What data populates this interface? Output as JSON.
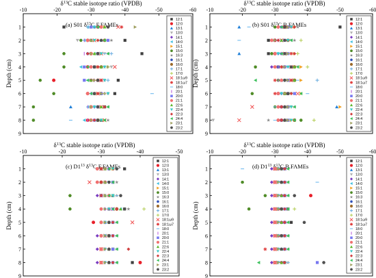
{
  "legend_entries": [
    "12:1",
    "12:0",
    "13:1",
    "13:0",
    "14:1",
    "14:0",
    "15:1",
    "15:0",
    "16:3",
    "16:1",
    "16:0",
    "17:1",
    "17:0",
    "18:1ω9",
    "18:1ω7",
    "18:0",
    "20:1",
    "20:0",
    "21:1",
    "22:6",
    "22:4",
    "22:3",
    "24:4",
    "23:1",
    "23:2"
  ],
  "colors": [
    "#404040",
    "#e8202a",
    "#1f7fd8",
    "#b0b0b0",
    "#7a3cc0",
    "#44c0e0",
    "#f0a020",
    "#508c28",
    "#8c8c8c",
    "#3050b8",
    "#9c6a2c",
    "#70b0e0",
    "#b8d060",
    "#f05050",
    "#e04040",
    "#7cc0f0",
    "#c070e0",
    "#7878f0",
    "#f07070",
    "#60b830",
    "#38c8c8",
    "#d04040",
    "#3cc05c",
    "#a0a060",
    "#505050"
  ],
  "marker_shapes": [
    "square-icon",
    "circle-icon",
    "triangle-up-icon",
    "triangle-down-icon",
    "diamond-icon",
    "triangle-left-icon",
    "triangle-right-icon",
    "hexagon-icon",
    "star-icon",
    "pentagon-icon",
    "circle-icon",
    "plus-icon",
    "plus-icon",
    "x-icon",
    "asterisk-icon",
    "dash-icon",
    "bar-icon",
    "square-icon",
    "circle-icon",
    "triangle-up-icon",
    "triangle-down-icon",
    "diamond-icon",
    "triangle-left-icon",
    "triangle-right-icon",
    "hexagon-icon"
  ],
  "chart_data": [
    {
      "type": "scatter",
      "title": "(a) S01 δ13C F.FAMEs",
      "axis_title": "δ13C stable isotope ratio (VPDB)",
      "ylabel": "Depth (cm)",
      "xlim": [
        -10,
        -60
      ],
      "ylim": [
        9,
        0
      ],
      "xticks": [
        -10,
        -20,
        -30,
        -40,
        -50,
        -60
      ],
      "yticks": [
        1,
        2,
        3,
        4,
        5,
        6,
        7,
        8,
        9
      ],
      "series": [
        {
          "depth": 1,
          "values": [
            -22,
            -32,
            -30,
            -31,
            -33,
            -29,
            -34,
            -30,
            -35,
            -31,
            -32,
            -29,
            -33,
            -38,
            -39,
            -31,
            -32,
            -30,
            -33,
            -34,
            -31,
            -35,
            -32,
            -43,
            -35
          ]
        },
        {
          "depth": 2,
          "values": [
            -40,
            -29,
            -33,
            -26,
            -30,
            -28,
            -31,
            -27,
            -36,
            -30,
            -34,
            -29,
            -32,
            -31,
            -30,
            -33,
            -28,
            -35,
            -29,
            -30,
            -31,
            -32,
            -34,
            -30,
            -33
          ]
        },
        {
          "depth": 3,
          "values": [
            -45,
            -30,
            -32,
            -34,
            -29,
            -31,
            -33,
            -22,
            -35,
            -29,
            -32,
            -36,
            -31,
            -33,
            -30,
            -34,
            -28,
            -32,
            -30,
            -31,
            -33,
            -29,
            -35,
            -30,
            -32
          ]
        },
        {
          "depth": 4,
          "values": [
            -31,
            -29,
            -33,
            -36,
            -30,
            -27,
            -32,
            -22,
            -34,
            -31,
            -33,
            -30,
            -35,
            -37,
            -32,
            -29,
            -31,
            -28,
            -30,
            -33,
            -34,
            -32,
            -29,
            -35,
            -31
          ]
        },
        {
          "depth": 5,
          "values": [
            -38,
            -19,
            -32,
            -30,
            -33,
            -29,
            -31,
            -15,
            -34,
            -30,
            -32,
            -35,
            -31,
            -33,
            -30,
            -29,
            -31,
            -28,
            -32,
            -30,
            -34,
            -33,
            -29,
            -31,
            -32
          ]
        },
        {
          "depth": 6,
          "values": [
            -37,
            -29,
            -33,
            -31,
            -34,
            -30,
            -32,
            -19,
            -35,
            -31,
            -33,
            -30,
            -34,
            -32,
            -31,
            -48,
            -30,
            -33,
            -29,
            -31,
            -35,
            -32,
            -30,
            -33,
            -31
          ]
        },
        {
          "depth": 7,
          "values": [
            -34,
            -30,
            -24,
            -32,
            -31,
            -29,
            -33,
            -13,
            -35,
            -30,
            -32,
            -31,
            -34,
            -33,
            -30,
            -31,
            -29,
            -32,
            -30,
            -33,
            -31,
            -34,
            -35,
            -30,
            -32
          ]
        },
        {
          "depth": 8,
          "values": [
            -33,
            -29,
            -31,
            -32,
            -30,
            -28,
            -34,
            -13,
            -35,
            -30,
            -32,
            -31,
            -33,
            -34,
            -30,
            -24,
            -29,
            -31,
            -30,
            -32,
            -33,
            -31,
            -34,
            -30,
            -32
          ]
        }
      ]
    },
    {
      "type": "scatter",
      "title": "(b) S01 δ13C B.FAMEs",
      "axis_title": "δ13C stable isotope ratio (VPDB)",
      "ylabel": "Depth (cm)",
      "xlim": [
        -10,
        -60
      ],
      "ylim": [
        9,
        0
      ],
      "xticks": [
        -10,
        -20,
        -30,
        -40,
        -50,
        -60
      ],
      "yticks": [
        1,
        2,
        3,
        4,
        5,
        6,
        7,
        8,
        9
      ],
      "series": [
        {
          "depth": 1,
          "values": [
            -50,
            -33,
            -19,
            -35,
            -31,
            -34,
            -36,
            -30,
            -37,
            -32,
            -34,
            -31,
            -36,
            -33,
            -35,
            -22,
            -32,
            -34,
            -31,
            -33,
            -35,
            -36,
            -32,
            -34,
            -33
          ]
        },
        {
          "depth": 2,
          "values": [
            -28,
            -30,
            -32,
            -35,
            -31,
            -29,
            -33,
            -34,
            -36,
            -30,
            -34,
            -31,
            -38,
            -32,
            -30,
            -19,
            -31,
            -33,
            -29,
            -32,
            -34,
            -31,
            -35,
            -30,
            -33
          ]
        },
        {
          "depth": 3,
          "values": [
            -28,
            -30,
            -19,
            -35,
            -31,
            -33,
            -36,
            -29,
            -34,
            -32,
            -30,
            -31,
            -37,
            -33,
            -35,
            -31,
            -32,
            -34,
            -30,
            -33,
            -31,
            -36,
            -32,
            -34,
            -33
          ]
        },
        {
          "depth": 4,
          "values": [
            -31,
            -33,
            -35,
            -37,
            -29,
            -32,
            -38,
            -24,
            -34,
            -31,
            -36,
            -33,
            -40,
            -35,
            -32,
            -34,
            -31,
            -33,
            -30,
            -36,
            -34,
            -32,
            -37,
            -33,
            -35
          ]
        },
        {
          "depth": 5,
          "values": [
            -34,
            -55,
            -32,
            -36,
            -33,
            -35,
            -38,
            -31,
            -34,
            -32,
            -36,
            -43,
            -33,
            -35,
            -30,
            -37,
            -31,
            -34,
            -32,
            -36,
            -33,
            -35,
            -24,
            -34,
            -33
          ]
        },
        {
          "depth": 6,
          "values": [
            -34,
            -31,
            -33,
            -35,
            -32,
            -36,
            -38,
            -23,
            -34,
            -31,
            -33,
            -32,
            -35,
            -37,
            -30,
            -40,
            -34,
            -36,
            -31,
            -33,
            -32,
            -35,
            -38,
            -33,
            -34
          ]
        },
        {
          "depth": 7,
          "values": [
            -34,
            -32,
            -49,
            -35,
            -31,
            -33,
            -50,
            -30,
            -36,
            -32,
            -34,
            -31,
            -35,
            -23,
            -33,
            -30,
            -32,
            -34,
            -31,
            -33,
            -35,
            -32,
            -36,
            -34,
            -33
          ]
        },
        {
          "depth": 8,
          "values": [
            -34,
            -32,
            -33,
            -11,
            -31,
            -33,
            -35,
            -38,
            -28,
            -32,
            -36,
            -31,
            -42,
            -19,
            -33,
            -30,
            -32,
            -34,
            -31,
            -33,
            -35,
            -32,
            -36,
            -34,
            -33
          ]
        }
      ]
    },
    {
      "type": "scatter",
      "title": "(c) D113 δ13C F.FAMEs",
      "axis_title": "δ13C stable isotope ratio (VPDB)",
      "ylabel": "Depth (cm)",
      "xlim": [
        -10,
        -50
      ],
      "ylim": [
        9,
        0
      ],
      "xticks": [
        -10,
        -20,
        -30,
        -40,
        -50
      ],
      "yticks": [
        1,
        2,
        3,
        4,
        5,
        6,
        7,
        8,
        9
      ],
      "series": [
        {
          "depth": 1,
          "values": [
            -36,
            -33,
            -30,
            -31,
            -29,
            -32,
            -33,
            -30,
            -34,
            -31,
            -32,
            -29,
            -33,
            -30,
            -31,
            -34,
            -30,
            -32,
            -29,
            -31,
            -33,
            -30,
            -32,
            -31,
            -34
          ]
        },
        {
          "depth": 2,
          "values": [
            -33,
            -31,
            -30,
            -32,
            -29,
            -33,
            -31,
            -30,
            -34,
            -32,
            -30,
            -31,
            -33,
            -27,
            -30,
            -32,
            -31,
            -33,
            -29,
            -31,
            -32,
            -30,
            -33,
            -31,
            -32
          ]
        },
        {
          "depth": 3,
          "values": [
            -33,
            -30,
            -32,
            -31,
            -29,
            -33,
            -31,
            -22,
            -34,
            -32,
            -30,
            -31,
            -33,
            -30,
            -32,
            -34,
            -31,
            -30,
            -32,
            -31,
            -33,
            -30,
            -32,
            -31,
            -35
          ]
        },
        {
          "depth": 4,
          "values": [
            -36,
            -34,
            -32,
            -33,
            -31,
            -35,
            -33,
            -22,
            -37,
            -32,
            -34,
            -31,
            -41,
            -33,
            -32,
            -34,
            -31,
            -33,
            -30,
            -35,
            -32,
            -34,
            -33,
            -31,
            -36
          ]
        },
        {
          "depth": 5,
          "values": [
            -33,
            -28,
            -31,
            -32,
            -30,
            -33,
            -31,
            -30,
            -34,
            -32,
            -30,
            -31,
            -33,
            -38,
            -32,
            -34,
            -31,
            -33,
            -30,
            -32,
            -31,
            -33,
            -34,
            -31,
            -32
          ]
        },
        {
          "depth": 6,
          "values": [
            -32,
            -30,
            -31,
            -33,
            -29,
            -32,
            -31,
            -30,
            -34,
            -31,
            -32,
            -30,
            -33,
            -31,
            -32,
            -34,
            -31,
            -33,
            -30,
            -32,
            -31,
            -33,
            -34,
            -31,
            -32
          ]
        },
        {
          "depth": 7,
          "values": [
            -33,
            -30,
            -32,
            -31,
            -29,
            -33,
            -31,
            -30,
            -34,
            -32,
            -30,
            -31,
            -33,
            -30,
            -32,
            -34,
            -31,
            -33,
            -30,
            -32,
            -31,
            -37,
            -34,
            -31,
            -32
          ]
        },
        {
          "depth": 8,
          "values": [
            -38,
            -40,
            -32,
            -31,
            -29,
            -33,
            -31,
            -30,
            -34,
            -32,
            -30,
            -31,
            -33,
            -30,
            -32,
            -34,
            -31,
            -33,
            -30,
            -32,
            -31,
            -33,
            -34,
            -31,
            -32
          ]
        }
      ]
    },
    {
      "type": "scatter",
      "title": "(d) D113 δ13C B.FAMEs",
      "axis_title": "δ13C stable isotope ratio (VPDB)",
      "ylabel": "Depth (cm)",
      "xlim": [
        -10,
        -60
      ],
      "ylim": [
        9,
        0
      ],
      "xticks": [
        -10,
        -20,
        -30,
        -40,
        -50,
        -60
      ],
      "yticks": [
        1,
        2,
        3,
        4,
        5,
        6,
        7,
        8,
        9
      ],
      "series": [
        {
          "depth": 1,
          "values": [
            -33,
            -31,
            -30,
            -32,
            -29,
            -33,
            -31,
            -30,
            -34,
            -32,
            -30,
            -31,
            -33,
            -30,
            -32,
            -20,
            -31,
            -33,
            -30,
            -32,
            -31,
            -33,
            -34,
            -31,
            -32
          ]
        },
        {
          "depth": 2,
          "values": [
            -33,
            -30,
            -32,
            -31,
            -29,
            -33,
            -31,
            -20,
            -34,
            -32,
            -30,
            -31,
            -33,
            -30,
            -32,
            -43,
            -31,
            -33,
            -30,
            -32,
            -31,
            -33,
            -34,
            -31,
            -32
          ]
        },
        {
          "depth": 3,
          "values": [
            -33,
            -41,
            -32,
            -31,
            -29,
            -33,
            -31,
            -27,
            -34,
            -32,
            -30,
            -31,
            -33,
            -30,
            -32,
            -34,
            -31,
            -33,
            -30,
            -32,
            -31,
            -33,
            -34,
            -31,
            -36
          ]
        },
        {
          "depth": 4,
          "values": [
            -34,
            -31,
            -30,
            -32,
            -29,
            -33,
            -31,
            -22,
            -34,
            -32,
            -30,
            -31,
            -36,
            -30,
            -32,
            -34,
            -31,
            -33,
            -30,
            -32,
            -31,
            -33,
            -34,
            -31,
            -32
          ]
        },
        {
          "depth": 5,
          "values": [
            -35,
            -33,
            -32,
            -31,
            -29,
            -33,
            -31,
            -30,
            -34,
            -32,
            -30,
            -31,
            -33,
            -30,
            -32,
            -34,
            -31,
            -33,
            -30,
            -32,
            -31,
            -33,
            -34,
            -31,
            -39
          ]
        },
        {
          "depth": 6,
          "values": [
            -33,
            -31,
            -30,
            -32,
            -29,
            -33,
            -31,
            -30,
            -34,
            -32,
            -55,
            -31,
            -33,
            -30,
            -32,
            -34,
            -31,
            -33,
            -30,
            -32,
            -31,
            -33,
            -34,
            -31,
            -32
          ]
        },
        {
          "depth": 7,
          "values": [
            -33,
            -30,
            -32,
            -31,
            -29,
            -33,
            -31,
            -30,
            -34,
            -32,
            -30,
            -31,
            -33,
            -30,
            -27,
            -34,
            -31,
            -33,
            -30,
            -32,
            -31,
            -33,
            -34,
            -31,
            -32
          ]
        },
        {
          "depth": 8,
          "values": [
            -33,
            -30,
            -32,
            -31,
            -29,
            -33,
            -31,
            -30,
            -34,
            -32,
            -30,
            -31,
            -33,
            -30,
            -32,
            -34,
            -31,
            -43,
            -30,
            -32,
            -31,
            -33,
            -25,
            -31,
            -45
          ]
        }
      ]
    }
  ]
}
